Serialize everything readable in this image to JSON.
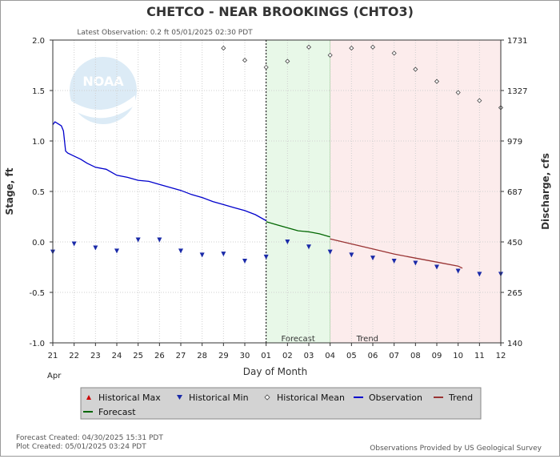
{
  "chart_data": {
    "type": "line",
    "title": "CHETCO - NEAR BROOKINGS  (CHTO3)",
    "subtitle": "Latest Observation: 0.2 ft 05/01/2025 02:30 PDT",
    "xlabel": "Day of Month",
    "ylabel": "Stage, ft",
    "y2label": "Discharge, cfs",
    "month_label": "Apr",
    "x_ticks": [
      "21",
      "22",
      "23",
      "24",
      "25",
      "26",
      "27",
      "28",
      "29",
      "30",
      "01",
      "02",
      "03",
      "04",
      "05",
      "06",
      "07",
      "08",
      "09",
      "10",
      "11",
      "12"
    ],
    "xlim": [
      0,
      21
    ],
    "ylim": [
      -1.0,
      2.0
    ],
    "y_ticks": [
      "2.0",
      "1.5",
      "1.0",
      "0.5",
      "0.0",
      "-0.5",
      "-1.0"
    ],
    "y2_ticks": [
      {
        "label": "1731",
        "stage": 2.0
      },
      {
        "label": "1327",
        "stage": 1.5
      },
      {
        "label": "979",
        "stage": 1.0
      },
      {
        "label": "687",
        "stage": 0.5
      },
      {
        "label": "450",
        "stage": 0.0
      },
      {
        "label": "265",
        "stage": -0.5
      },
      {
        "label": "140",
        "stage": -1.0
      }
    ],
    "grid": true,
    "now_x": 10.0,
    "forecast_band": {
      "x": [
        10.0,
        13.0
      ],
      "label": "Forecast",
      "color": "#e8f8e8"
    },
    "trend_band": {
      "x": [
        13.0,
        21.0
      ],
      "label": "Trend",
      "color": "#fcecec"
    },
    "series": [
      {
        "name": "Observation",
        "color": "#0000cc",
        "points": [
          [
            0.0,
            1.16
          ],
          [
            0.1,
            1.19
          ],
          [
            0.25,
            1.17
          ],
          [
            0.4,
            1.15
          ],
          [
            0.5,
            1.1
          ],
          [
            0.6,
            0.9
          ],
          [
            0.7,
            0.88
          ],
          [
            1.0,
            0.85
          ],
          [
            1.3,
            0.82
          ],
          [
            1.6,
            0.78
          ],
          [
            2.0,
            0.74
          ],
          [
            2.5,
            0.72
          ],
          [
            3.0,
            0.66
          ],
          [
            3.5,
            0.64
          ],
          [
            4.0,
            0.61
          ],
          [
            4.5,
            0.6
          ],
          [
            5.0,
            0.57
          ],
          [
            5.5,
            0.54
          ],
          [
            6.0,
            0.51
          ],
          [
            6.5,
            0.47
          ],
          [
            7.0,
            0.44
          ],
          [
            7.5,
            0.4
          ],
          [
            8.0,
            0.37
          ],
          [
            8.5,
            0.34
          ],
          [
            9.0,
            0.31
          ],
          [
            9.5,
            0.27
          ],
          [
            10.0,
            0.21
          ]
        ]
      },
      {
        "name": "Forecast",
        "color": "#006600",
        "points": [
          [
            10.0,
            0.2
          ],
          [
            10.5,
            0.17
          ],
          [
            11.0,
            0.14
          ],
          [
            11.5,
            0.11
          ],
          [
            12.0,
            0.1
          ],
          [
            12.5,
            0.08
          ],
          [
            13.0,
            0.05
          ]
        ]
      },
      {
        "name": "Trend",
        "color": "#993333",
        "points": [
          [
            13.0,
            0.03
          ],
          [
            14.0,
            -0.02
          ],
          [
            15.0,
            -0.07
          ],
          [
            16.0,
            -0.12
          ],
          [
            17.0,
            -0.16
          ],
          [
            18.0,
            -0.2
          ],
          [
            19.0,
            -0.24
          ],
          [
            19.2,
            -0.26
          ]
        ]
      },
      {
        "name": "Historical Min",
        "color": "#1a2aa8",
        "points": [
          [
            0,
            -0.1
          ],
          [
            1,
            -0.02
          ],
          [
            2,
            -0.06
          ],
          [
            3,
            -0.09
          ],
          [
            4,
            0.02
          ],
          [
            5,
            0.02
          ],
          [
            6,
            -0.09
          ],
          [
            7,
            -0.13
          ],
          [
            8,
            -0.12
          ],
          [
            9,
            -0.19
          ],
          [
            10,
            -0.15
          ],
          [
            11,
            0.0
          ],
          [
            12,
            -0.05
          ],
          [
            13,
            -0.1
          ],
          [
            14,
            -0.13
          ],
          [
            15,
            -0.16
          ],
          [
            16,
            -0.19
          ],
          [
            17,
            -0.21
          ],
          [
            18,
            -0.25
          ],
          [
            19,
            -0.29
          ],
          [
            20,
            -0.32
          ],
          [
            21,
            -0.32
          ]
        ]
      },
      {
        "name": "Historical Mean",
        "color": "#444444",
        "points": [
          [
            8,
            1.92
          ],
          [
            9,
            1.8
          ],
          [
            10,
            1.73
          ],
          [
            11,
            1.79
          ],
          [
            12,
            1.93
          ],
          [
            13,
            1.85
          ],
          [
            14,
            1.92
          ],
          [
            15,
            1.93
          ],
          [
            16,
            1.87
          ],
          [
            17,
            1.71
          ],
          [
            18,
            1.59
          ],
          [
            19,
            1.48
          ],
          [
            20,
            1.4
          ],
          [
            21,
            1.33
          ]
        ]
      }
    ],
    "legend": {
      "placement": "bottom",
      "items": [
        {
          "label": "Historical Max",
          "symbol": "triangle-up",
          "color": "#cc0000"
        },
        {
          "label": "Historical Min",
          "symbol": "triangle-down",
          "color": "#1a2aa8"
        },
        {
          "label": "Historical Mean",
          "symbol": "diamond",
          "color": "#444444"
        },
        {
          "label": "Observation",
          "symbol": "line",
          "color": "#0000cc"
        },
        {
          "label": "Trend",
          "symbol": "line",
          "color": "#993333"
        },
        {
          "label": "Forecast",
          "symbol": "line",
          "color": "#006600"
        }
      ]
    }
  },
  "footer": {
    "forecast_created": "Forecast Created: 04/30/2025 15:31 PDT",
    "plot_created": "Plot Created: 05/01/2025 03:24 PDT",
    "credit": "Observations Provided by US Geological Survey"
  },
  "watermark": {
    "text": "NOAA"
  }
}
